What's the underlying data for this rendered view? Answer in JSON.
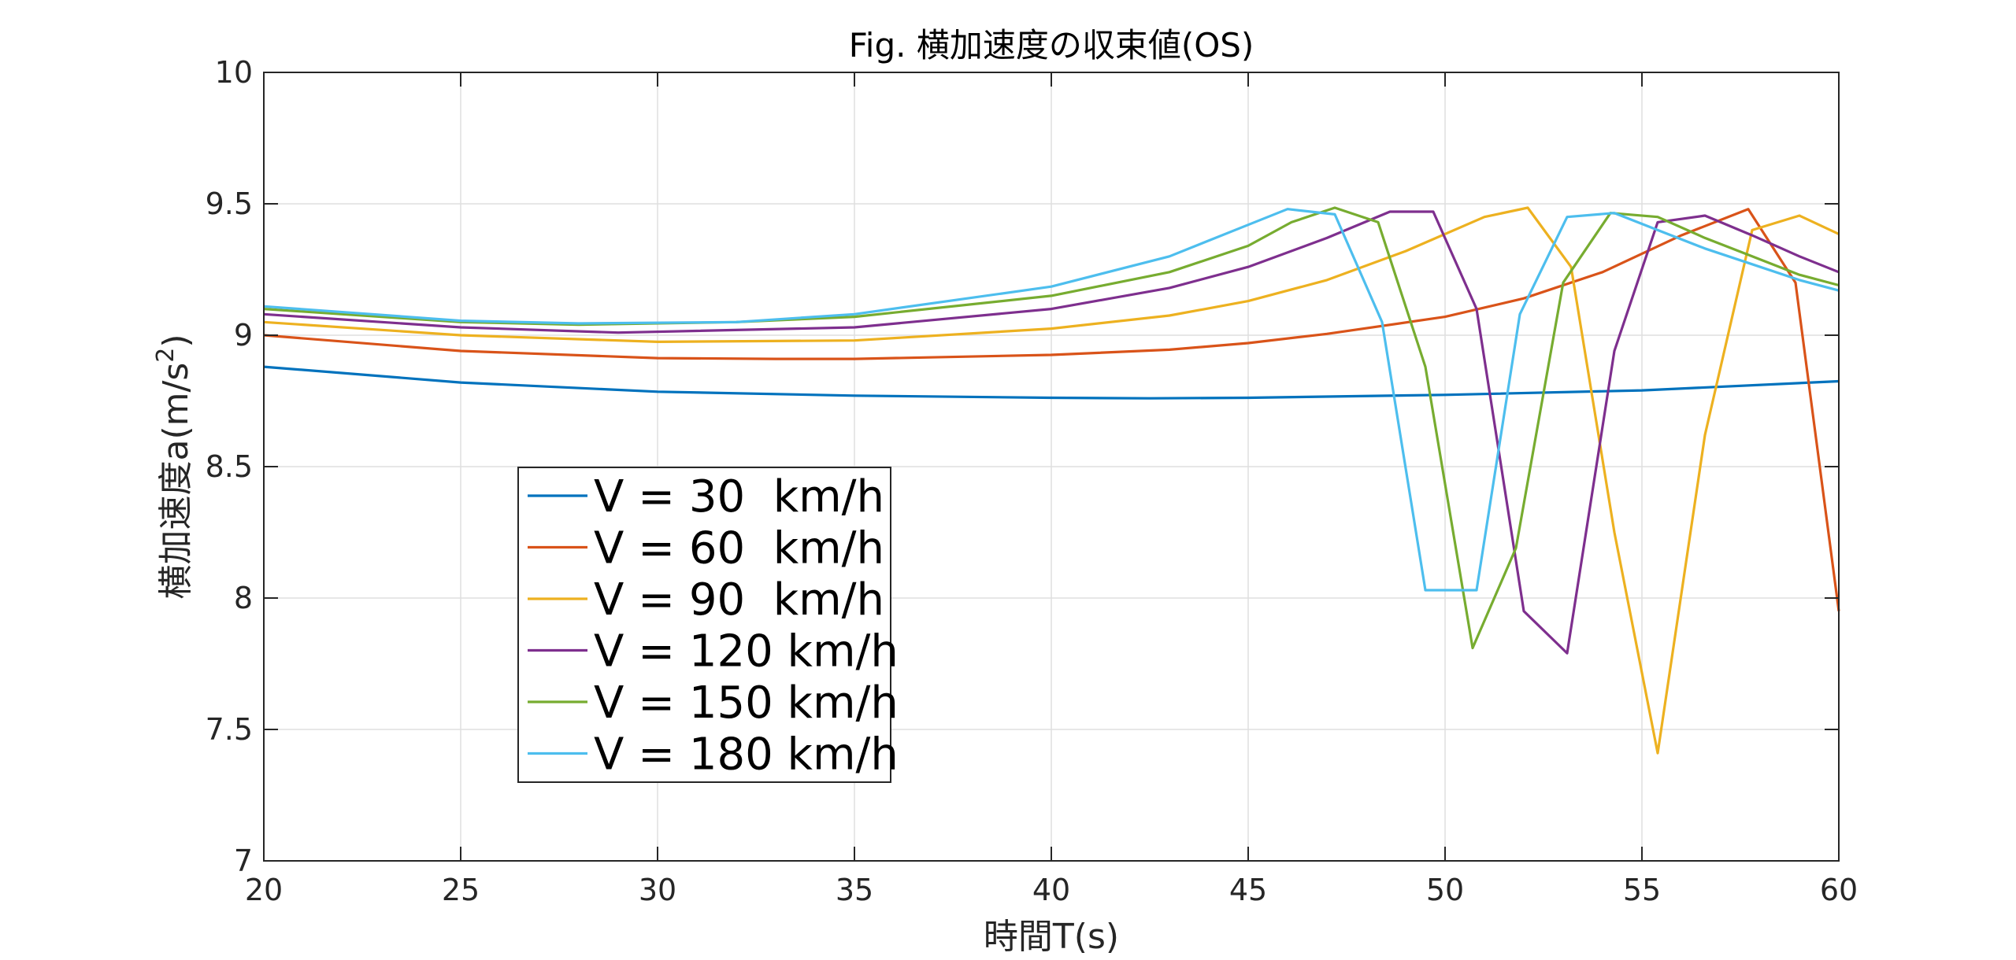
{
  "chart_data": {
    "type": "line",
    "title": "Fig. 横加速度の収束値(OS)",
    "xlabel": "時間T(s)",
    "ylabel_main": "横加速度a(m/s",
    "ylabel_sup": "2",
    "ylabel_close": ")",
    "xlim": [
      20,
      60
    ],
    "ylim": [
      7,
      10
    ],
    "xticks": [
      20,
      25,
      30,
      35,
      40,
      45,
      50,
      55,
      60
    ],
    "yticks": [
      7,
      7.5,
      8,
      8.5,
      9,
      9.5,
      10
    ],
    "xtick_labels": [
      "20",
      "25",
      "30",
      "35",
      "40",
      "45",
      "50",
      "55",
      "60"
    ],
    "ytick_labels": [
      "7",
      "7.5",
      "8",
      "8.5",
      "9",
      "9.5",
      "10"
    ],
    "grid": true,
    "legend_position": "lower-left",
    "series": [
      {
        "name": "V = 30  km/h",
        "color": "#0072BD",
        "x": [
          20,
          25,
          30,
          35,
          40,
          42.5,
          45,
          50,
          55,
          60
        ],
        "y": [
          8.88,
          8.82,
          8.785,
          8.77,
          8.762,
          8.76,
          8.762,
          8.773,
          8.79,
          8.825
        ]
      },
      {
        "name": "V = 60  km/h",
        "color": "#D95319",
        "x": [
          20,
          25,
          30,
          33,
          35,
          40,
          43,
          45,
          47,
          50,
          52,
          54,
          56,
          57.7,
          58.9,
          60
        ],
        "y": [
          9.0,
          8.94,
          8.913,
          8.91,
          8.91,
          8.925,
          8.945,
          8.97,
          9.005,
          9.07,
          9.14,
          9.24,
          9.38,
          9.48,
          9.2,
          7.95
        ]
      },
      {
        "name": "V = 90  km/h",
        "color": "#EDB120",
        "x": [
          20,
          25,
          30,
          35,
          40,
          43,
          45,
          47,
          49,
          51,
          52.1,
          53.2,
          54.3,
          55.4,
          56.6,
          57.8,
          59,
          60
        ],
        "y": [
          9.05,
          9.0,
          8.975,
          8.98,
          9.025,
          9.075,
          9.13,
          9.21,
          9.32,
          9.45,
          9.485,
          9.26,
          8.25,
          7.41,
          8.62,
          9.4,
          9.455,
          9.385
        ]
      },
      {
        "name": "V = 120 km/h",
        "color": "#7E2F8E",
        "x": [
          20,
          25,
          29,
          35,
          40,
          43,
          45,
          47,
          48.6,
          49.7,
          50.8,
          52,
          53.1,
          54.3,
          55.4,
          56.6,
          57.8,
          59,
          60
        ],
        "y": [
          9.08,
          9.03,
          9.01,
          9.03,
          9.1,
          9.18,
          9.26,
          9.37,
          9.47,
          9.47,
          9.1,
          7.95,
          7.79,
          8.94,
          9.43,
          9.455,
          9.38,
          9.3,
          9.24
        ]
      },
      {
        "name": "V = 150 km/h",
        "color": "#77AC30",
        "x": [
          20,
          25,
          28,
          32,
          35,
          40,
          43,
          45,
          46.1,
          47.2,
          48.3,
          49.5,
          50.7,
          51.8,
          53,
          54.2,
          55.4,
          56.6,
          57.8,
          59,
          60
        ],
        "y": [
          9.1,
          9.05,
          9.04,
          9.05,
          9.07,
          9.15,
          9.24,
          9.34,
          9.43,
          9.485,
          9.43,
          8.88,
          7.81,
          8.19,
          9.2,
          9.465,
          9.45,
          9.37,
          9.3,
          9.23,
          9.19
        ]
      },
      {
        "name": "V = 180 km/h",
        "color": "#4DBEEE",
        "x": [
          20,
          25,
          28,
          32,
          35,
          40,
          43,
          45,
          46,
          47.2,
          48.4,
          49.5,
          50.8,
          51.9,
          53.1,
          54.3,
          55.4,
          56.6,
          57.8,
          59,
          60
        ],
        "y": [
          9.11,
          9.055,
          9.045,
          9.05,
          9.08,
          9.185,
          9.3,
          9.42,
          9.48,
          9.46,
          9.05,
          8.03,
          8.03,
          9.08,
          9.45,
          9.465,
          9.4,
          9.33,
          9.27,
          9.21,
          9.17
        ]
      }
    ]
  }
}
